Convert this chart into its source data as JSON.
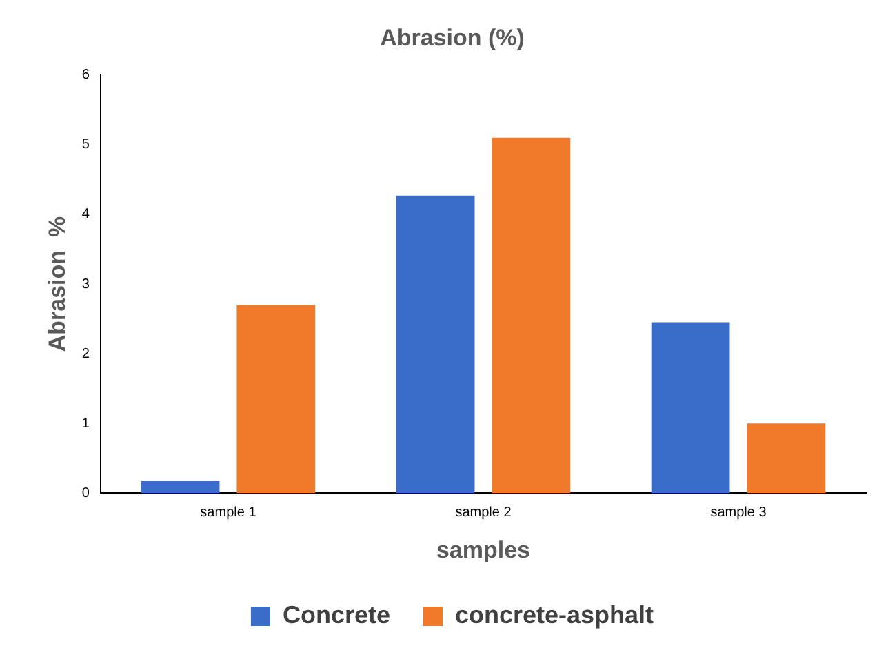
{
  "chart_data": {
    "type": "bar",
    "title": "Abrasion (%)",
    "xlabel": "samples",
    "ylabel": "Abrasion  %",
    "categories": [
      "sample 1",
      "sample 2",
      "sample 3"
    ],
    "series": [
      {
        "name": "Concrete",
        "color": "#3a6cc9",
        "values": [
          0.17,
          4.27,
          2.45
        ]
      },
      {
        "name": "concrete-asphalt",
        "color": "#f07a2a",
        "values": [
          2.7,
          5.1,
          1.0
        ]
      }
    ],
    "ylim": [
      0,
      6
    ],
    "yticks": [
      0,
      1,
      2,
      3,
      4,
      5,
      6
    ],
    "grid": false,
    "legend": "bottom"
  }
}
